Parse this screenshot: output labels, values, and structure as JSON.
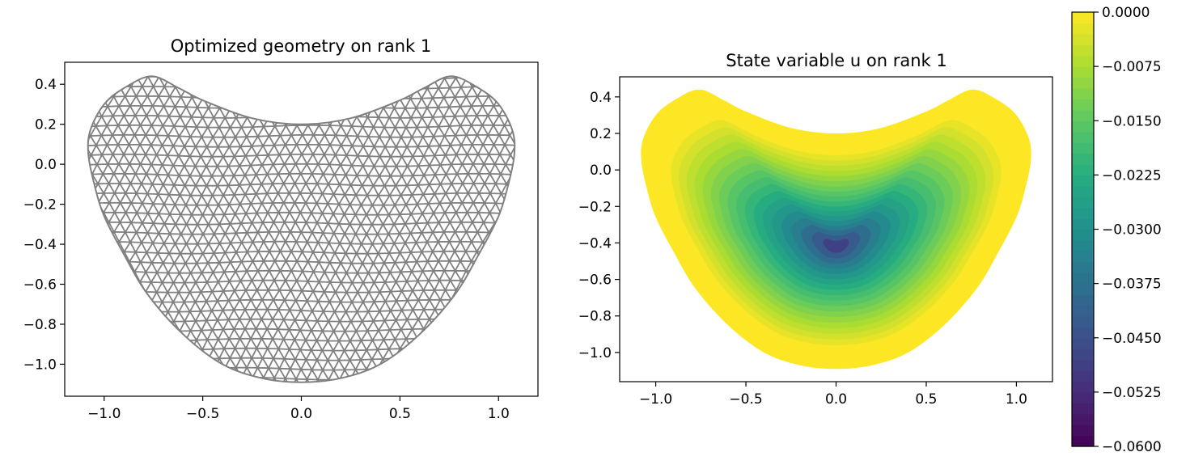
{
  "chart_data": [
    {
      "type": "mesh",
      "title": "Optimized geometry on rank 1",
      "xlabel": "",
      "ylabel": "",
      "xlim": [
        -1.2,
        1.2
      ],
      "ylim": [
        -1.16,
        0.51
      ],
      "xticks": [
        -1.0,
        -0.5,
        0.0,
        0.5,
        1.0
      ],
      "xtick_labels": [
        "−1.0",
        "−0.5",
        "0.0",
        "0.5",
        "1.0"
      ],
      "yticks": [
        0.4,
        0.2,
        0.0,
        -0.2,
        -0.4,
        -0.6,
        -0.8,
        -1.0
      ],
      "ytick_labels": [
        "0.4",
        "0.2",
        "0.0",
        "−0.2",
        "−0.4",
        "−0.6",
        "−0.8",
        "−1.0"
      ],
      "line_color": "#808080",
      "boundary": [
        [
          0,
          0.2
        ],
        [
          0.25,
          0.23
        ],
        [
          0.5,
          0.32
        ],
        [
          0.62,
          0.38
        ],
        [
          0.76,
          0.44
        ],
        [
          0.9,
          0.38
        ],
        [
          1.0,
          0.3
        ],
        [
          1.07,
          0.17
        ],
        [
          1.08,
          0.05
        ],
        [
          1.05,
          -0.1
        ],
        [
          1.0,
          -0.26
        ],
        [
          0.9,
          -0.45
        ],
        [
          0.78,
          -0.65
        ],
        [
          0.6,
          -0.85
        ],
        [
          0.4,
          -1.0
        ],
        [
          0.2,
          -1.07
        ],
        [
          0,
          -1.09
        ],
        [
          -0.2,
          -1.07
        ],
        [
          -0.4,
          -1.0
        ],
        [
          -0.6,
          -0.85
        ],
        [
          -0.78,
          -0.65
        ],
        [
          -0.9,
          -0.45
        ],
        [
          -1.0,
          -0.26
        ],
        [
          -1.05,
          -0.1
        ],
        [
          -1.08,
          0.05
        ],
        [
          -1.07,
          0.17
        ],
        [
          -1.0,
          0.3
        ],
        [
          -0.9,
          0.38
        ],
        [
          -0.76,
          0.44
        ],
        [
          -0.62,
          0.38
        ],
        [
          -0.5,
          0.32
        ],
        [
          -0.25,
          0.23
        ]
      ]
    },
    {
      "type": "contourf",
      "title": "State variable u on rank 1",
      "xlabel": "",
      "ylabel": "",
      "xlim": [
        -1.2,
        1.2
      ],
      "ylim": [
        -1.16,
        0.51
      ],
      "xticks": [
        -1.0,
        -0.5,
        0.0,
        0.5,
        1.0
      ],
      "xtick_labels": [
        "−1.0",
        "−0.5",
        "0.0",
        "0.5",
        "1.0"
      ],
      "yticks": [
        0.4,
        0.2,
        0.0,
        -0.2,
        -0.4,
        -0.6,
        -0.8,
        -1.0
      ],
      "ytick_labels": [
        "0.4",
        "0.2",
        "0.0",
        "−0.2",
        "−0.4",
        "−0.6",
        "−0.8",
        "−1.0"
      ],
      "colormap": "viridis",
      "min_location": [
        0.0,
        -0.42
      ],
      "min_value": -0.06,
      "colorbar": {
        "range": [
          -0.06,
          0.0
        ],
        "ticks": [
          0.0,
          -0.0075,
          -0.015,
          -0.0225,
          -0.03,
          -0.0375,
          -0.045,
          -0.0525,
          -0.06
        ],
        "tick_labels": [
          "0.0000",
          "−0.0075",
          "−0.0150",
          "−0.0225",
          "−0.0300",
          "−0.0375",
          "−0.0450",
          "−0.0525",
          "−0.0600"
        ],
        "colors": [
          "#440154",
          "#472c7a",
          "#3b518b",
          "#2c718e",
          "#21908d",
          "#27ad81",
          "#5cc863",
          "#aadc32",
          "#fde725"
        ]
      }
    }
  ]
}
